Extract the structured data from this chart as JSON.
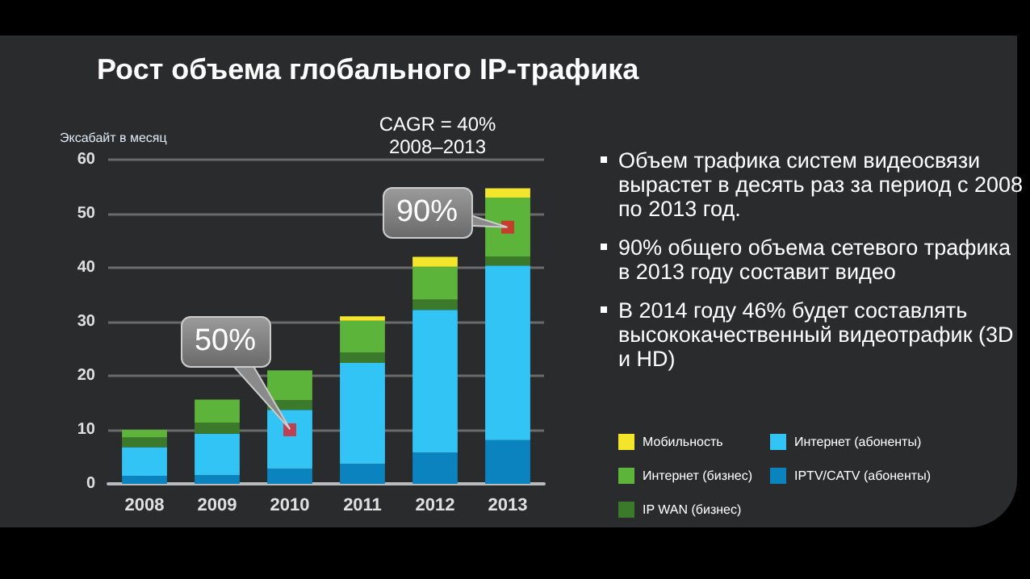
{
  "chart_data": {
    "type": "bar",
    "title": "Рост объема глобального IP-трафика",
    "subtitle": "CAGR = 40%\n2008–2013",
    "ylabel": "Эксабайт в месяц",
    "categories": [
      "2008",
      "2009",
      "2010",
      "2011",
      "2012",
      "2013"
    ],
    "stacked": true,
    "series": [
      {
        "name": "IPTV/CATV (абоненты)",
        "color": "#0a83be",
        "values": [
          1.5,
          1.6,
          2.8,
          3.7,
          5.8,
          8.1
        ]
      },
      {
        "name": "Интернет (абоненты)",
        "color": "#33c4f6",
        "values": [
          5.3,
          7.7,
          10.9,
          18.7,
          26.4,
          32.3
        ]
      },
      {
        "name": "IP WAN (бизнес)",
        "color": "#3b7a2b",
        "values": [
          1.8,
          2.0,
          1.8,
          1.9,
          1.9,
          1.7
        ]
      },
      {
        "name": "Интернет (бизнес)",
        "color": "#5db43a",
        "values": [
          1.4,
          4.3,
          5.5,
          5.9,
          6.1,
          10.9
        ]
      },
      {
        "name": "Мобильность",
        "color": "#f3e52c",
        "values": [
          0,
          0,
          0,
          0.8,
          1.8,
          1.7
        ]
      },
      {
        "type": "scatter",
        "marker": "square",
        "color": "#e0202a",
        "values": [
          null,
          null,
          10,
          null,
          null,
          47.5
        ]
      }
    ],
    "ylim": [
      0,
      60
    ],
    "yticks": [
      0,
      10,
      20,
      30,
      40,
      50,
      60
    ],
    "grid": "y",
    "legend": "bottom right",
    "annotations": [
      {
        "text": "50%",
        "x": "2010",
        "y": 10
      },
      {
        "text": "90%",
        "x": "2013",
        "y": 47.5
      },
      "Объем трафика систем видеосвязи вырастет в десять раз за период с 2008 по 2013 год.",
      "90% общего объема сетевого трафика в 2013 году составит видео",
      "В 2014 году 46% будет составлять высококачественный видеотрафик (3D и HD)"
    ]
  }
}
